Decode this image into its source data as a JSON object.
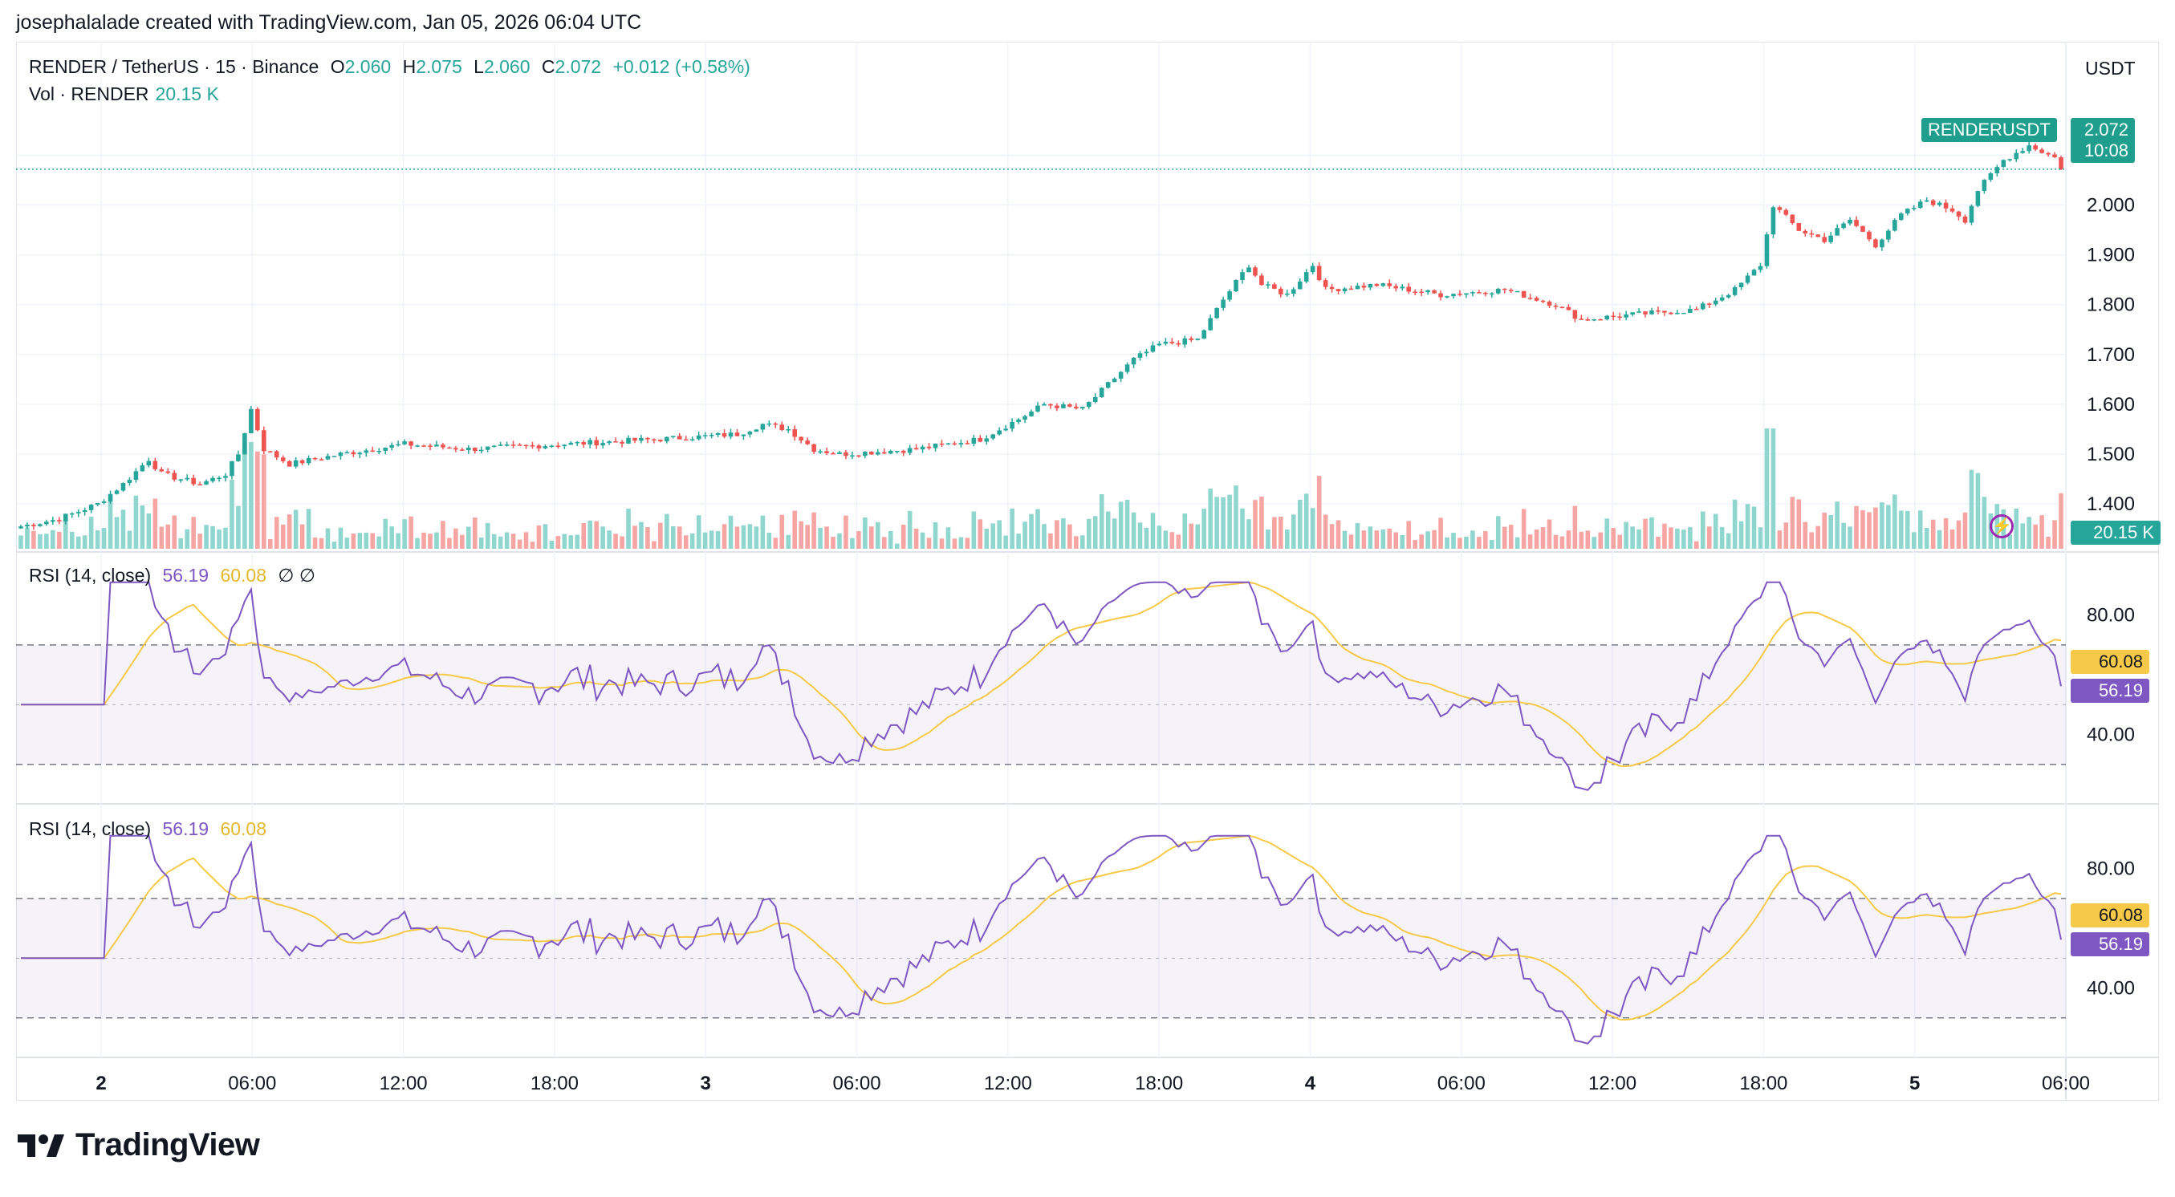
{
  "header": {
    "attribution": "josephalalade created with TradingView.com, Jan 05, 2026 06:04 UTC"
  },
  "main_pane": {
    "symbol_line": "RENDER / TetherUS · 15 · Binance",
    "o_label": "O",
    "o_value": "2.060",
    "h_label": "H",
    "h_value": "2.075",
    "l_label": "L",
    "l_value": "2.060",
    "c_label": "C",
    "c_value": "2.072",
    "change": "+0.012 (+0.58%)",
    "vol_label": "Vol · RENDER",
    "vol_value": "20.15 K",
    "currency": "USDT",
    "price_tag_symbol": "RENDERUSDT",
    "price_tag_value": "2.072",
    "price_tag_countdown": "10:08",
    "vol_tag": "20.15 K"
  },
  "rsi_panes": [
    {
      "label": "RSI (14, close)",
      "rsi_value": "56.19",
      "ma_value": "60.08",
      "extra": "∅  ∅"
    },
    {
      "label": "RSI (14, close)",
      "rsi_value": "56.19",
      "ma_value": "60.08",
      "extra": ""
    }
  ],
  "footer": {
    "brand": "TradingView"
  },
  "colors": {
    "up": "#26a69a",
    "down": "#ef5350",
    "rsi": "#7e57c2",
    "rsi_ma": "#f7c948",
    "vol_up": "#8fd6cf",
    "vol_down": "#f6a5a3"
  },
  "chart_data": {
    "type": "candlestick",
    "price_axis": {
      "ticks": [
        "1.400",
        "1.500",
        "1.600",
        "1.700",
        "1.800",
        "1.900",
        "2.000",
        "2.100"
      ],
      "range": [
        1.31,
        2.17
      ]
    },
    "rsi_axis": {
      "ticks": [
        "40.00",
        "80.00"
      ],
      "upper_band": 70,
      "lower_band": 30,
      "range": [
        20,
        92
      ]
    },
    "x_ticks": [
      "2",
      "06:00",
      "12:00",
      "18:00",
      "3",
      "06:00",
      "12:00",
      "18:00",
      "4",
      "06:00",
      "12:00",
      "18:00",
      "5",
      "06:00"
    ],
    "price_path": [
      [
        0,
        1.355
      ],
      [
        6,
        1.37
      ],
      [
        12,
        1.4
      ],
      [
        16,
        1.44
      ],
      [
        20,
        1.49
      ],
      [
        22,
        1.46
      ],
      [
        28,
        1.44
      ],
      [
        32,
        1.46
      ],
      [
        34,
        1.5
      ],
      [
        36,
        1.59
      ],
      [
        38,
        1.51
      ],
      [
        42,
        1.48
      ],
      [
        50,
        1.5
      ],
      [
        60,
        1.52
      ],
      [
        70,
        1.51
      ],
      [
        85,
        1.52
      ],
      [
        100,
        1.53
      ],
      [
        112,
        1.54
      ],
      [
        116,
        1.56
      ],
      [
        120,
        1.55
      ],
      [
        124,
        1.51
      ],
      [
        128,
        1.5
      ],
      [
        140,
        1.51
      ],
      [
        150,
        1.53
      ],
      [
        156,
        1.57
      ],
      [
        160,
        1.6
      ],
      [
        166,
        1.59
      ],
      [
        170,
        1.64
      ],
      [
        174,
        1.69
      ],
      [
        178,
        1.72
      ],
      [
        184,
        1.73
      ],
      [
        188,
        1.81
      ],
      [
        192,
        1.88
      ],
      [
        194,
        1.84
      ],
      [
        198,
        1.82
      ],
      [
        202,
        1.88
      ],
      [
        204,
        1.83
      ],
      [
        212,
        1.84
      ],
      [
        222,
        1.82
      ],
      [
        232,
        1.83
      ],
      [
        240,
        1.8
      ],
      [
        244,
        1.77
      ],
      [
        252,
        1.78
      ],
      [
        262,
        1.79
      ],
      [
        268,
        1.83
      ],
      [
        272,
        1.88
      ],
      [
        274,
        2.0
      ],
      [
        278,
        1.95
      ],
      [
        282,
        1.93
      ],
      [
        286,
        1.97
      ],
      [
        290,
        1.92
      ],
      [
        294,
        1.98
      ],
      [
        298,
        2.01
      ],
      [
        302,
        1.99
      ],
      [
        304,
        1.97
      ],
      [
        306,
        2.03
      ],
      [
        310,
        2.09
      ],
      [
        314,
        2.12
      ],
      [
        318,
        2.095
      ],
      [
        319,
        2.072
      ]
    ],
    "rsi_series_name": "RSI (14, close)",
    "rsi_latest": 56.19,
    "rsi_ma_latest": 60.08,
    "volume_latest": "20.15 K"
  }
}
